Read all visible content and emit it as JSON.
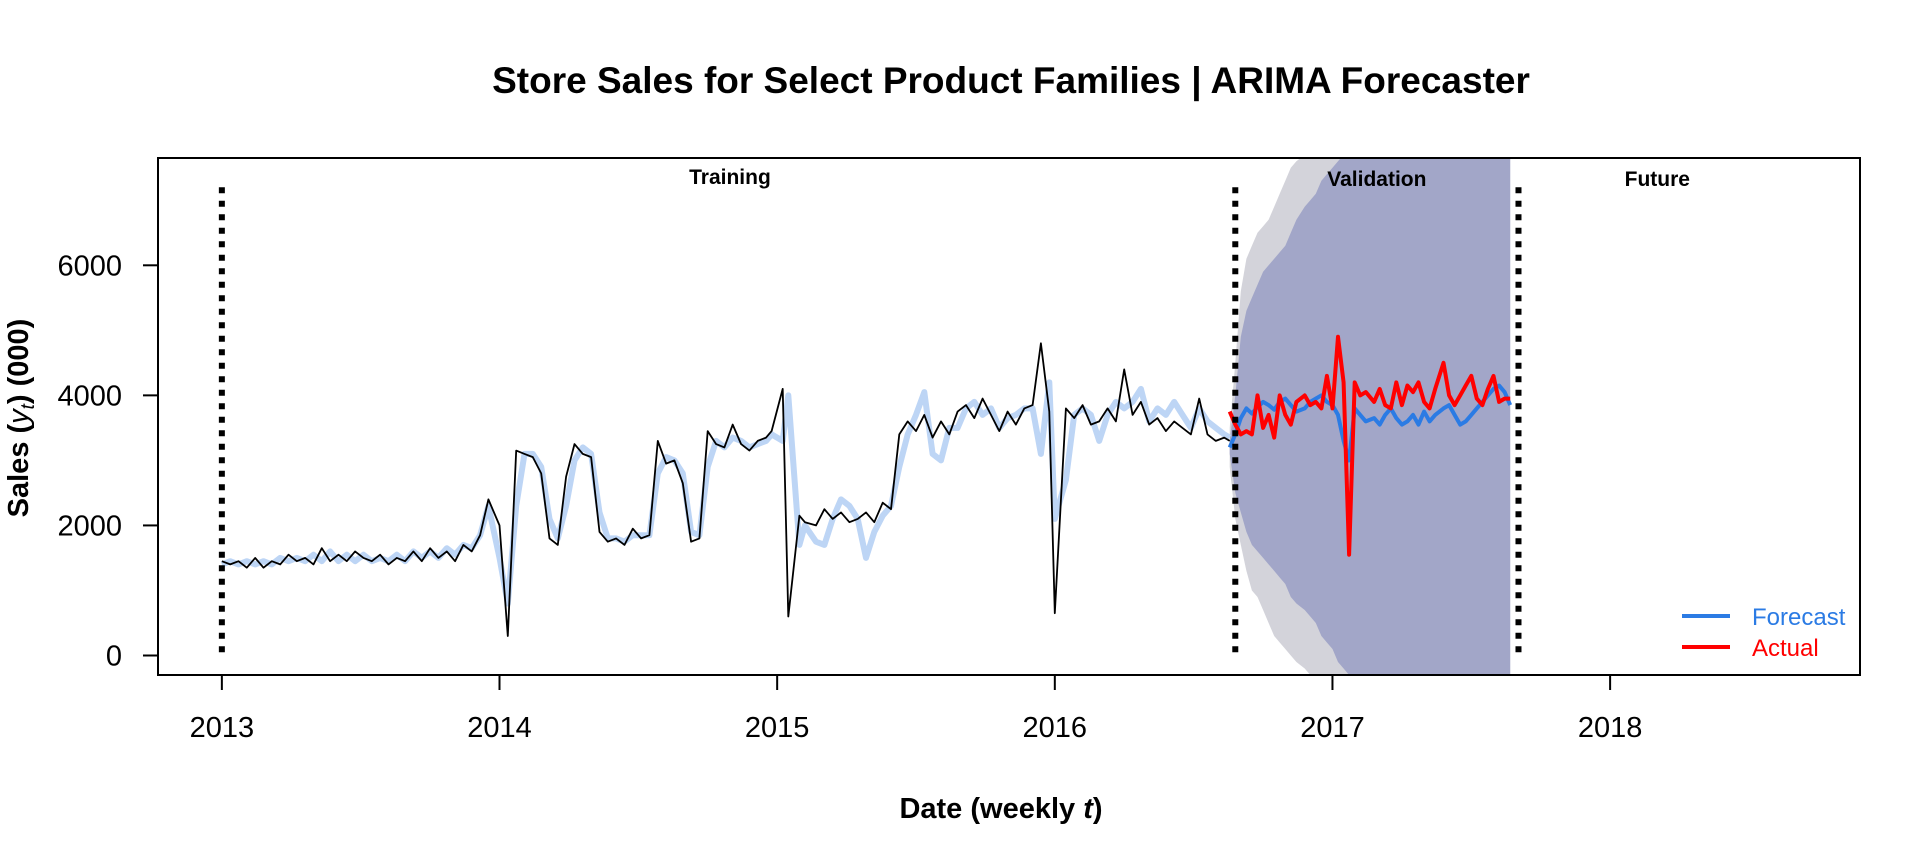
{
  "chart_data": {
    "type": "line",
    "title": "Store Sales for Select Product Families  |  ARIMA Forecaster",
    "xlabel": "Date (weekly t)",
    "xlabel_parts": {
      "before": "Date (weekly ",
      "var": "t",
      "after": ")"
    },
    "ylabel": "Sales (y_t) (000)",
    "ylabel_parts": {
      "before": "Sales (",
      "var": "y",
      "sub": "t",
      "after": ") (000)"
    },
    "xlim": [
      2012.77,
      2018.9
    ],
    "ylim": [
      -300,
      7650
    ],
    "x_ticks": [
      2013,
      2014,
      2015,
      2016,
      2017,
      2018
    ],
    "x_tick_labels": [
      "2013",
      "2014",
      "2015",
      "2016",
      "2017",
      "2018"
    ],
    "y_ticks": [
      0,
      2000,
      4000,
      6000
    ],
    "y_tick_labels": [
      "0",
      "2000",
      "4000",
      "6000"
    ],
    "grid": false,
    "legend_position": "bottom-right",
    "regions": [
      {
        "label": "Training",
        "start": 2013.0,
        "end": 2016.65,
        "label_x": 2014.83,
        "label_y": 7250
      },
      {
        "label": "Validation",
        "start": 2016.65,
        "end": 2017.67,
        "label_x": 2017.16,
        "label_y": 7220
      },
      {
        "label": "Future",
        "start": 2017.67,
        "end": 2018.9,
        "label_x": 2018.17,
        "label_y": 7220
      }
    ],
    "region_dividers": [
      2013.0,
      2016.65,
      2017.67
    ],
    "divider_top": 7200,
    "colors": {
      "actual_train": "#000000",
      "fitted": "#bdd5f5",
      "forecast": "#2b7be4",
      "actual_validation": "#ff0000",
      "band_outer": "#d3d3da",
      "band_inner": "#a2a6c8",
      "divider": "#000000"
    },
    "series": [
      {
        "name": "Forecast",
        "role": "forecast",
        "x": [
          2016.63,
          2016.65,
          2016.67,
          2016.69,
          2016.71,
          2016.73,
          2016.75,
          2016.77,
          2016.79,
          2016.81,
          2016.83,
          2016.85,
          2016.87,
          2016.9,
          2016.92,
          2016.94,
          2016.96,
          2016.98,
          2017.0,
          2017.02,
          2017.04,
          2017.06,
          2017.08,
          2017.1,
          2017.12,
          2017.15,
          2017.17,
          2017.19,
          2017.21,
          2017.23,
          2017.25,
          2017.27,
          2017.29,
          2017.31,
          2017.33,
          2017.35,
          2017.37,
          2017.4,
          2017.42,
          2017.44,
          2017.46,
          2017.48,
          2017.5,
          2017.52,
          2017.54,
          2017.56,
          2017.58,
          2017.6,
          2017.62,
          2017.64
        ],
        "values": [
          3200,
          3400,
          3650,
          3800,
          3720,
          3820,
          3900,
          3850,
          3780,
          3900,
          3950,
          3850,
          3750,
          3800,
          3900,
          3950,
          4000,
          3900,
          3850,
          3700,
          3300,
          3000,
          3800,
          3700,
          3600,
          3650,
          3550,
          3700,
          3800,
          3650,
          3550,
          3600,
          3700,
          3550,
          3750,
          3600,
          3700,
          3800,
          3850,
          3700,
          3550,
          3600,
          3700,
          3800,
          3900,
          4000,
          4100,
          4150,
          4050,
          3850
        ]
      },
      {
        "name": "Actual",
        "role": "actual_validation",
        "x": [
          2016.63,
          2016.65,
          2016.67,
          2016.69,
          2016.71,
          2016.73,
          2016.75,
          2016.77,
          2016.79,
          2016.81,
          2016.83,
          2016.85,
          2016.87,
          2016.9,
          2016.92,
          2016.94,
          2016.96,
          2016.98,
          2017.0,
          2017.02,
          2017.04,
          2017.06,
          2017.08,
          2017.1,
          2017.12,
          2017.15,
          2017.17,
          2017.19,
          2017.21,
          2017.23,
          2017.25,
          2017.27,
          2017.29,
          2017.31,
          2017.33,
          2017.35,
          2017.37,
          2017.4,
          2017.42,
          2017.44,
          2017.46,
          2017.48,
          2017.5,
          2017.52,
          2017.54,
          2017.56,
          2017.58,
          2017.6,
          2017.62,
          2017.64
        ],
        "values": [
          3750,
          3550,
          3400,
          3450,
          3400,
          4000,
          3500,
          3700,
          3350,
          4000,
          3700,
          3550,
          3900,
          4000,
          3850,
          3900,
          3800,
          4300,
          3800,
          4900,
          4200,
          1550,
          4200,
          4000,
          4050,
          3900,
          4100,
          3850,
          3800,
          4200,
          3850,
          4150,
          4050,
          4200,
          3900,
          3800,
          4100,
          4500,
          4000,
          3850,
          4000,
          4150,
          4300,
          3950,
          3850,
          4100,
          4300,
          3900,
          3950,
          3950
        ]
      },
      {
        "name": "Actual (training)",
        "role": "actual_train",
        "x": [
          2013.0,
          2013.03,
          2013.06,
          2013.09,
          2013.12,
          2013.15,
          2013.18,
          2013.21,
          2013.24,
          2013.27,
          2013.3,
          2013.33,
          2013.36,
          2013.39,
          2013.42,
          2013.45,
          2013.48,
          2013.51,
          2013.54,
          2013.57,
          2013.6,
          2013.63,
          2013.66,
          2013.69,
          2013.72,
          2013.75,
          2013.78,
          2013.81,
          2013.84,
          2013.87,
          2013.9,
          2013.93,
          2013.96,
          2014.0,
          2014.03,
          2014.06,
          2014.09,
          2014.12,
          2014.15,
          2014.18,
          2014.21,
          2014.24,
          2014.27,
          2014.3,
          2014.33,
          2014.36,
          2014.39,
          2014.42,
          2014.45,
          2014.48,
          2014.51,
          2014.54,
          2014.57,
          2014.6,
          2014.63,
          2014.66,
          2014.69,
          2014.72,
          2014.75,
          2014.78,
          2014.81,
          2014.84,
          2014.87,
          2014.9,
          2014.93,
          2014.96,
          2014.98,
          2015.02,
          2015.04,
          2015.08,
          2015.1,
          2015.14,
          2015.17,
          2015.2,
          2015.23,
          2015.26,
          2015.29,
          2015.32,
          2015.35,
          2015.38,
          2015.41,
          2015.44,
          2015.47,
          2015.5,
          2015.53,
          2015.56,
          2015.59,
          2015.62,
          2015.65,
          2015.68,
          2015.71,
          2015.74,
          2015.77,
          2015.8,
          2015.83,
          2015.86,
          2015.89,
          2015.92,
          2015.95,
          2015.98,
          2016.0,
          2016.04,
          2016.07,
          2016.1,
          2016.13,
          2016.16,
          2016.19,
          2016.22,
          2016.25,
          2016.28,
          2016.31,
          2016.34,
          2016.37,
          2016.4,
          2016.43,
          2016.46,
          2016.49,
          2016.52,
          2016.55,
          2016.58,
          2016.61,
          2016.63
        ],
        "values": [
          1450,
          1400,
          1450,
          1350,
          1500,
          1350,
          1450,
          1400,
          1550,
          1450,
          1500,
          1400,
          1650,
          1450,
          1550,
          1450,
          1600,
          1500,
          1450,
          1550,
          1400,
          1500,
          1450,
          1600,
          1450,
          1650,
          1500,
          1600,
          1450,
          1700,
          1600,
          1850,
          2400,
          2000,
          300,
          3150,
          3100,
          3050,
          2800,
          1800,
          1700,
          2750,
          3250,
          3100,
          3050,
          1900,
          1750,
          1800,
          1700,
          1950,
          1800,
          1850,
          3300,
          2950,
          3000,
          2650,
          1750,
          1800,
          3450,
          3250,
          3200,
          3550,
          3250,
          3150,
          3300,
          3350,
          3450,
          4100,
          600,
          2150,
          2050,
          2000,
          2250,
          2100,
          2200,
          2050,
          2100,
          2200,
          2050,
          2350,
          2250,
          3400,
          3600,
          3450,
          3700,
          3350,
          3600,
          3400,
          3750,
          3850,
          3650,
          3950,
          3700,
          3450,
          3750,
          3550,
          3800,
          3850,
          4800,
          3750,
          650,
          3800,
          3650,
          3850,
          3550,
          3600,
          3800,
          3600,
          4400,
          3700,
          3900,
          3550,
          3650,
          3450,
          3600,
          3500,
          3400,
          3950,
          3400,
          3300,
          3350,
          3300
        ]
      },
      {
        "name": "Fitted",
        "role": "fitted",
        "x": [
          2013.0,
          2013.03,
          2013.06,
          2013.09,
          2013.12,
          2013.15,
          2013.18,
          2013.21,
          2013.24,
          2013.27,
          2013.3,
          2013.33,
          2013.36,
          2013.39,
          2013.42,
          2013.45,
          2013.48,
          2013.51,
          2013.54,
          2013.57,
          2013.6,
          2013.63,
          2013.66,
          2013.69,
          2013.72,
          2013.75,
          2013.78,
          2013.81,
          2013.84,
          2013.87,
          2013.9,
          2013.93,
          2013.96,
          2014.0,
          2014.03,
          2014.06,
          2014.09,
          2014.12,
          2014.15,
          2014.18,
          2014.21,
          2014.24,
          2014.27,
          2014.3,
          2014.33,
          2014.36,
          2014.39,
          2014.42,
          2014.45,
          2014.48,
          2014.51,
          2014.54,
          2014.57,
          2014.6,
          2014.63,
          2014.66,
          2014.69,
          2014.72,
          2014.75,
          2014.78,
          2014.81,
          2014.84,
          2014.87,
          2014.9,
          2014.93,
          2014.96,
          2014.98,
          2015.02,
          2015.04,
          2015.08,
          2015.1,
          2015.14,
          2015.17,
          2015.2,
          2015.23,
          2015.26,
          2015.29,
          2015.32,
          2015.35,
          2015.38,
          2015.41,
          2015.44,
          2015.47,
          2015.5,
          2015.53,
          2015.56,
          2015.59,
          2015.62,
          2015.65,
          2015.68,
          2015.71,
          2015.74,
          2015.77,
          2015.8,
          2015.83,
          2015.86,
          2015.89,
          2015.92,
          2015.95,
          2015.98,
          2016.0,
          2016.04,
          2016.07,
          2016.1,
          2016.13,
          2016.16,
          2016.19,
          2016.22,
          2016.25,
          2016.28,
          2016.31,
          2016.34,
          2016.37,
          2016.4,
          2016.43,
          2016.46,
          2016.49,
          2016.52,
          2016.55,
          2016.58,
          2016.61,
          2016.63
        ],
        "values": [
          1400,
          1450,
          1400,
          1450,
          1400,
          1450,
          1400,
          1500,
          1450,
          1500,
          1450,
          1550,
          1450,
          1600,
          1450,
          1550,
          1450,
          1550,
          1450,
          1500,
          1450,
          1550,
          1450,
          1600,
          1500,
          1600,
          1500,
          1650,
          1550,
          1700,
          1650,
          1850,
          2300,
          1500,
          800,
          2300,
          3100,
          3100,
          2900,
          2100,
          1800,
          2300,
          3000,
          3200,
          3100,
          2200,
          1800,
          1800,
          1750,
          1850,
          1850,
          1850,
          2800,
          3050,
          3000,
          2800,
          1900,
          1850,
          2900,
          3300,
          3200,
          3350,
          3300,
          3200,
          3250,
          3300,
          3400,
          3300,
          4000,
          1700,
          2000,
          1750,
          1700,
          2100,
          2400,
          2300,
          2100,
          1500,
          1900,
          2150,
          2300,
          2900,
          3400,
          3700,
          4050,
          3100,
          3000,
          3500,
          3500,
          3800,
          3900,
          3700,
          3800,
          3500,
          3650,
          3700,
          3800,
          3800,
          3100,
          4200,
          2100,
          2700,
          3700,
          3800,
          3700,
          3300,
          3700,
          3900,
          3800,
          3900,
          4100,
          3600,
          3800,
          3700,
          3900,
          3700,
          3500,
          3800,
          3600,
          3500,
          3400,
          3350
        ]
      }
    ],
    "bands": {
      "x": [
        2016.63,
        2016.65,
        2016.67,
        2016.69,
        2016.71,
        2016.73,
        2016.75,
        2016.77,
        2016.79,
        2016.81,
        2016.83,
        2016.85,
        2016.87,
        2016.9,
        2016.92,
        2016.94,
        2016.96,
        2016.98,
        2017.0,
        2017.02,
        2017.04,
        2017.06,
        2017.08,
        2017.1,
        2017.12,
        2017.15,
        2017.17,
        2017.19,
        2017.21,
        2017.23,
        2017.25,
        2017.27,
        2017.29,
        2017.31,
        2017.33,
        2017.35,
        2017.37,
        2017.4,
        2017.42,
        2017.44,
        2017.46,
        2017.48,
        2017.5,
        2017.52,
        2017.54,
        2017.56,
        2017.58,
        2017.6,
        2017.62,
        2017.64
      ],
      "outer_upper": [
        3500,
        4500,
        5600,
        6100,
        6300,
        6500,
        6600,
        6700,
        6900,
        7100,
        7300,
        7500,
        7600,
        7700,
        7800,
        7900,
        8000,
        8000,
        8000,
        8000,
        8000,
        8000,
        8000,
        8000,
        8000,
        8000,
        8000,
        8000,
        8000,
        8000,
        8000,
        8000,
        8000,
        8000,
        8000,
        8000,
        8000,
        8000,
        8000,
        8000,
        8000,
        8000,
        8000,
        8000,
        8000,
        8000,
        8000,
        8000,
        8000,
        8000
      ],
      "outer_lower": [
        2900,
        2100,
        1700,
        1300,
        1000,
        900,
        700,
        500,
        300,
        200,
        100,
        0,
        -100,
        -200,
        -300,
        -400,
        -400,
        -400,
        -400,
        -400,
        -400,
        -400,
        -400,
        -400,
        -400,
        -400,
        -400,
        -400,
        -400,
        -400,
        -400,
        -400,
        -400,
        -400,
        -400,
        -400,
        -400,
        -400,
        -400,
        -400,
        -400,
        -400,
        -400,
        -400,
        -400,
        -400,
        -400,
        -400,
        -400,
        -400
      ],
      "inner_upper": [
        3300,
        4000,
        4900,
        5300,
        5500,
        5700,
        5900,
        6000,
        6100,
        6200,
        6300,
        6500,
        6700,
        6900,
        7000,
        7100,
        7300,
        7400,
        7500,
        7600,
        7700,
        8000,
        8000,
        8000,
        8000,
        8000,
        8000,
        8000,
        8000,
        8000,
        8000,
        8000,
        8000,
        8000,
        8000,
        8000,
        8000,
        8000,
        8000,
        8000,
        8000,
        8000,
        8000,
        8000,
        8000,
        8000,
        8000,
        8000,
        8000,
        8000
      ],
      "inner_lower": [
        3100,
        2500,
        2200,
        1900,
        1700,
        1600,
        1500,
        1400,
        1300,
        1200,
        1100,
        900,
        800,
        700,
        600,
        500,
        300,
        200,
        100,
        -100,
        -200,
        -300,
        -300,
        -300,
        -400,
        -400,
        -400,
        -400,
        -400,
        -400,
        -400,
        -400,
        -400,
        -400,
        -400,
        -400,
        -400,
        -400,
        -400,
        -400,
        -400,
        -400,
        -400,
        -400,
        -400,
        -400,
        -400,
        -400,
        -400,
        -400
      ]
    },
    "legend": [
      {
        "label": "Forecast",
        "color": "#2b7be4"
      },
      {
        "label": "Actual",
        "color": "#ff0000"
      }
    ]
  }
}
